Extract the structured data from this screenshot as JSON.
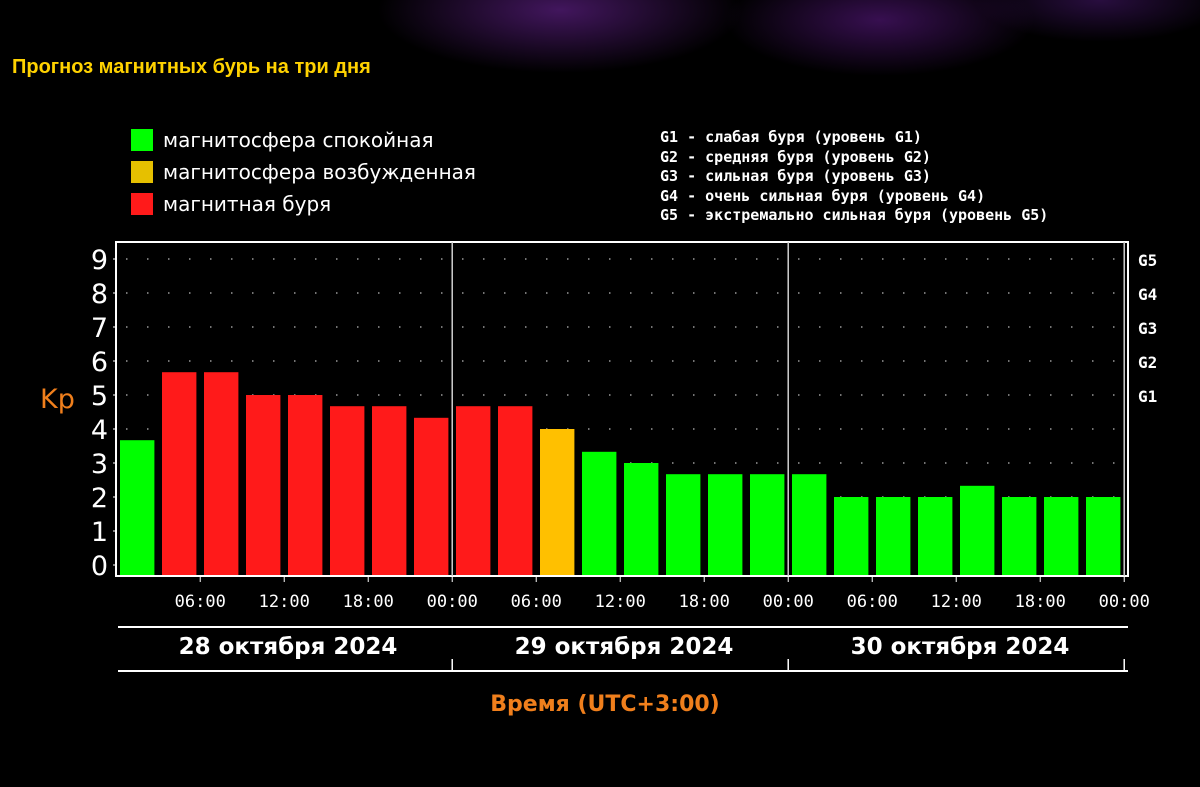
{
  "title": "Прогноз магнитных бурь на три дня",
  "legend": [
    {
      "label": "магнитосфера спокойная",
      "color": "#00ff00"
    },
    {
      "label": "магнитосфера возбужденная",
      "color": "#e6c000"
    },
    {
      "label": "магнитная буря",
      "color": "#ff1a1a"
    }
  ],
  "g_legend": [
    "G1 - слабая буря (уровень G1)",
    "G2 - средняя буря (уровень G2)",
    "G3 - сильная буря (уровень G3)",
    "G4 - очень сильная буря (уровень G4)",
    "G5 - экстремально сильная буря (уровень G5)"
  ],
  "chart_data": {
    "type": "bar",
    "ylabel": "Kp",
    "xlabel": "Время (UTC+3:00)",
    "ylim": [
      0,
      9
    ],
    "yticks": [
      "0",
      "1",
      "2",
      "3",
      "4",
      "5",
      "6",
      "7",
      "8",
      "9"
    ],
    "right_ticks": [
      {
        "label": "G1",
        "value": 5
      },
      {
        "label": "G2",
        "value": 6
      },
      {
        "label": "G3",
        "value": 7
      },
      {
        "label": "G4",
        "value": 8
      },
      {
        "label": "G5",
        "value": 9
      }
    ],
    "x_tick_labels": [
      "06:00",
      "12:00",
      "18:00",
      "00:00",
      "06:00",
      "12:00",
      "18:00",
      "00:00",
      "06:00",
      "12:00",
      "18:00",
      "00:00"
    ],
    "days": [
      "28 октября 2024",
      "29 октября 2024",
      "30 октября 2024"
    ],
    "values": [
      3.67,
      5.67,
      5.67,
      5.0,
      5.0,
      4.67,
      4.67,
      4.33,
      4.67,
      4.67,
      4.0,
      3.33,
      3.0,
      2.67,
      2.67,
      2.67,
      2.67,
      2.0,
      2.0,
      2.0,
      2.33,
      2.0,
      2.0,
      2.0
    ],
    "bar_levels": [
      "quiet",
      "storm",
      "storm",
      "storm",
      "storm",
      "storm",
      "storm",
      "storm",
      "storm",
      "storm",
      "active",
      "quiet",
      "quiet",
      "quiet",
      "quiet",
      "quiet",
      "quiet",
      "quiet",
      "quiet",
      "quiet",
      "quiet",
      "quiet",
      "quiet",
      "quiet"
    ],
    "level_colors": {
      "quiet": "#00ff00",
      "active": "#ffc000",
      "storm": "#ff1a1a"
    },
    "grid": true,
    "legend_position": "top-left"
  }
}
